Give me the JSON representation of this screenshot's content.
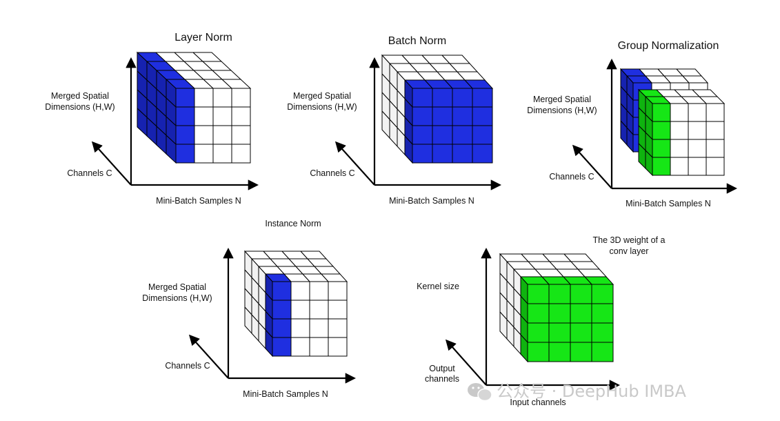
{
  "diagrams": {
    "layer_norm": {
      "title": "Layer Norm",
      "y_label_line1": "Merged Spatial",
      "y_label_line2": "Dimensions (H,W)",
      "z_label": "Channels C",
      "x_label": "Mini-Batch Samples N"
    },
    "batch_norm": {
      "title": "Batch Norm",
      "y_label_line1": "Merged Spatial",
      "y_label_line2": "Dimensions (H,W)",
      "z_label": "Channels C",
      "x_label": "Mini-Batch Samples N"
    },
    "group_norm": {
      "title": "Group Normalization",
      "y_label_line1": "Merged Spatial",
      "y_label_line2": "Dimensions (H,W)",
      "z_label": "Channels C",
      "x_label": "Mini-Batch Samples N"
    },
    "instance_norm": {
      "title": "Instance Norm",
      "y_label_line1": "Merged Spatial",
      "y_label_line2": "Dimensions (H,W)",
      "z_label": "Channels C",
      "x_label": "Mini-Batch Samples N"
    },
    "conv_weight": {
      "title_line1": "The 3D weight of a",
      "title_line2": "conv layer",
      "y_label": "Kernel size",
      "z_label_line1": "Output",
      "z_label_line2": "channels",
      "x_label": "Input channels"
    }
  },
  "colors": {
    "blue": "#1f2fe0",
    "dark_blue": "#1622b0",
    "green": "#16e616",
    "dark_green": "#0fb30f",
    "grid_line": "#000000",
    "white_face": "#ffffff",
    "gray_face": "#f2f2f2"
  },
  "watermark": {
    "text": "公众号 · DeepHub IMBA"
  }
}
